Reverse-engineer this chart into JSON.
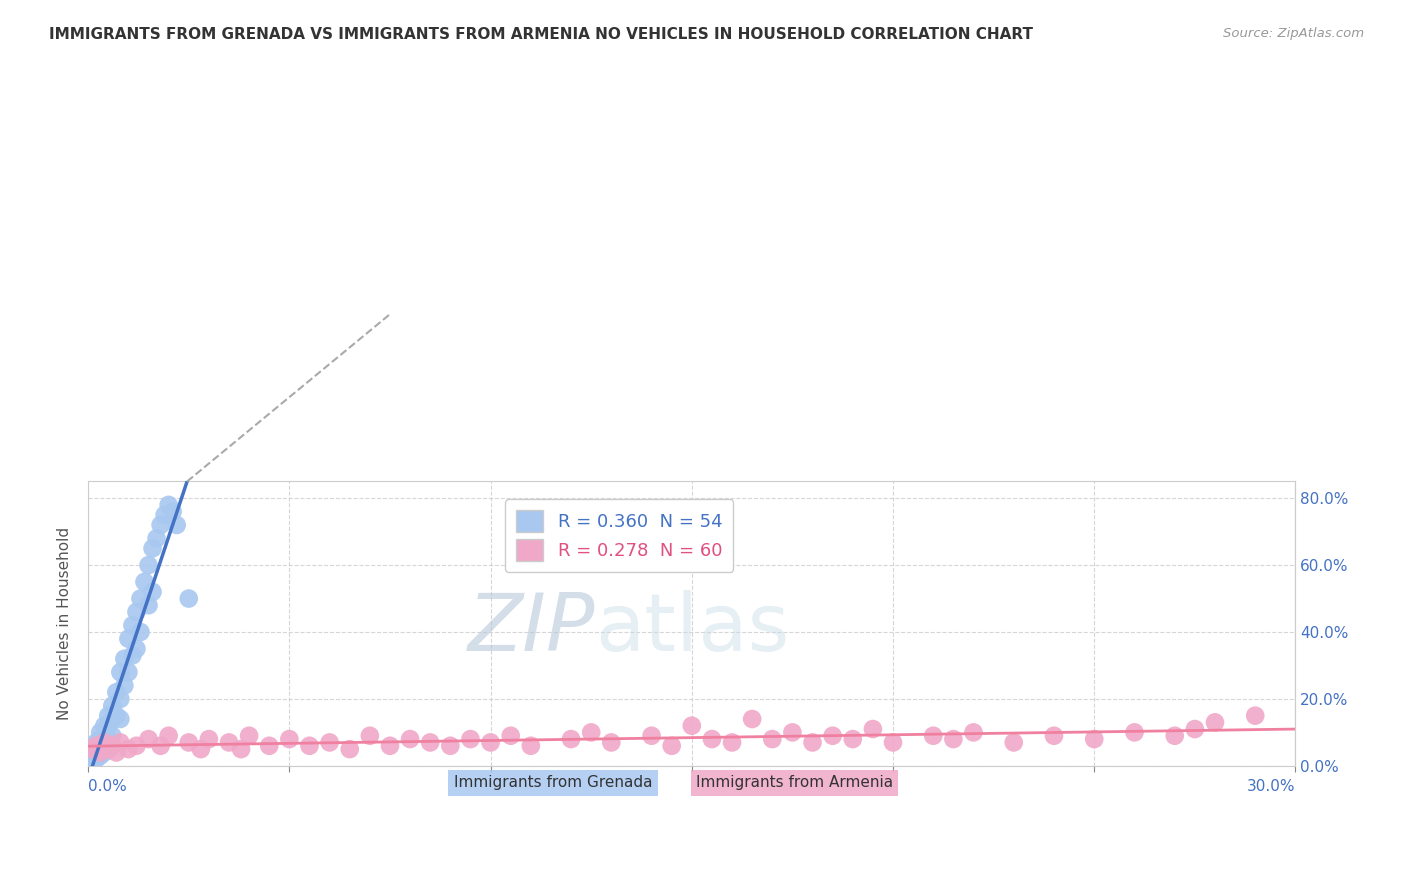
{
  "title": "IMMIGRANTS FROM GRENADA VS IMMIGRANTS FROM ARMENIA NO VEHICLES IN HOUSEHOLD CORRELATION CHART",
  "source": "Source: ZipAtlas.com",
  "ylabel_label": "No Vehicles in Household",
  "legend_grenada": "R = 0.360  N = 54",
  "legend_armenia": "R = 0.278  N = 60",
  "series_grenada_color": "#a8c8f0",
  "series_armenia_color": "#f0a8c8",
  "trend_grenada_color": "#4472c4",
  "trend_armenia_color": "#f080a0",
  "background_color": "#ffffff",
  "xmin": 0.0,
  "xmax": 0.3,
  "ymin": 0.0,
  "ymax": 0.85,
  "yticks": [
    0.0,
    0.2,
    0.4,
    0.6,
    0.8
  ],
  "xticks": [
    0.0,
    0.05,
    0.1,
    0.15,
    0.2,
    0.25,
    0.3
  ],
  "grenada_x": [
    0.001,
    0.001,
    0.001,
    0.001,
    0.001,
    0.002,
    0.002,
    0.002,
    0.002,
    0.002,
    0.002,
    0.003,
    0.003,
    0.003,
    0.003,
    0.003,
    0.004,
    0.004,
    0.004,
    0.004,
    0.005,
    0.005,
    0.005,
    0.005,
    0.006,
    0.006,
    0.006,
    0.007,
    0.007,
    0.008,
    0.008,
    0.008,
    0.009,
    0.009,
    0.01,
    0.01,
    0.011,
    0.011,
    0.012,
    0.012,
    0.013,
    0.013,
    0.014,
    0.015,
    0.015,
    0.016,
    0.016,
    0.017,
    0.018,
    0.019,
    0.02,
    0.021,
    0.022,
    0.025
  ],
  "grenada_y": [
    0.05,
    0.04,
    0.03,
    0.02,
    0.01,
    0.07,
    0.06,
    0.05,
    0.04,
    0.03,
    0.02,
    0.1,
    0.08,
    0.06,
    0.05,
    0.03,
    0.12,
    0.09,
    0.07,
    0.04,
    0.15,
    0.12,
    0.08,
    0.05,
    0.18,
    0.14,
    0.09,
    0.22,
    0.15,
    0.28,
    0.2,
    0.14,
    0.32,
    0.24,
    0.38,
    0.28,
    0.42,
    0.33,
    0.46,
    0.35,
    0.5,
    0.4,
    0.55,
    0.6,
    0.48,
    0.65,
    0.52,
    0.68,
    0.72,
    0.75,
    0.78,
    0.76,
    0.72,
    0.5
  ],
  "armenia_x": [
    0.001,
    0.002,
    0.003,
    0.004,
    0.005,
    0.006,
    0.007,
    0.008,
    0.01,
    0.012,
    0.015,
    0.018,
    0.02,
    0.025,
    0.028,
    0.03,
    0.035,
    0.038,
    0.04,
    0.045,
    0.05,
    0.055,
    0.06,
    0.065,
    0.07,
    0.075,
    0.08,
    0.085,
    0.09,
    0.095,
    0.1,
    0.105,
    0.11,
    0.12,
    0.125,
    0.13,
    0.14,
    0.145,
    0.15,
    0.155,
    0.16,
    0.165,
    0.17,
    0.175,
    0.18,
    0.185,
    0.19,
    0.195,
    0.2,
    0.21,
    0.215,
    0.22,
    0.23,
    0.24,
    0.25,
    0.26,
    0.27,
    0.275,
    0.28,
    0.29
  ],
  "armenia_y": [
    0.05,
    0.06,
    0.04,
    0.07,
    0.05,
    0.06,
    0.04,
    0.07,
    0.05,
    0.06,
    0.08,
    0.06,
    0.09,
    0.07,
    0.05,
    0.08,
    0.07,
    0.05,
    0.09,
    0.06,
    0.08,
    0.06,
    0.07,
    0.05,
    0.09,
    0.06,
    0.08,
    0.07,
    0.06,
    0.08,
    0.07,
    0.09,
    0.06,
    0.08,
    0.1,
    0.07,
    0.09,
    0.06,
    0.12,
    0.08,
    0.07,
    0.14,
    0.08,
    0.1,
    0.07,
    0.09,
    0.08,
    0.11,
    0.07,
    0.09,
    0.08,
    0.1,
    0.07,
    0.09,
    0.08,
    0.1,
    0.09,
    0.11,
    0.13,
    0.15
  ]
}
